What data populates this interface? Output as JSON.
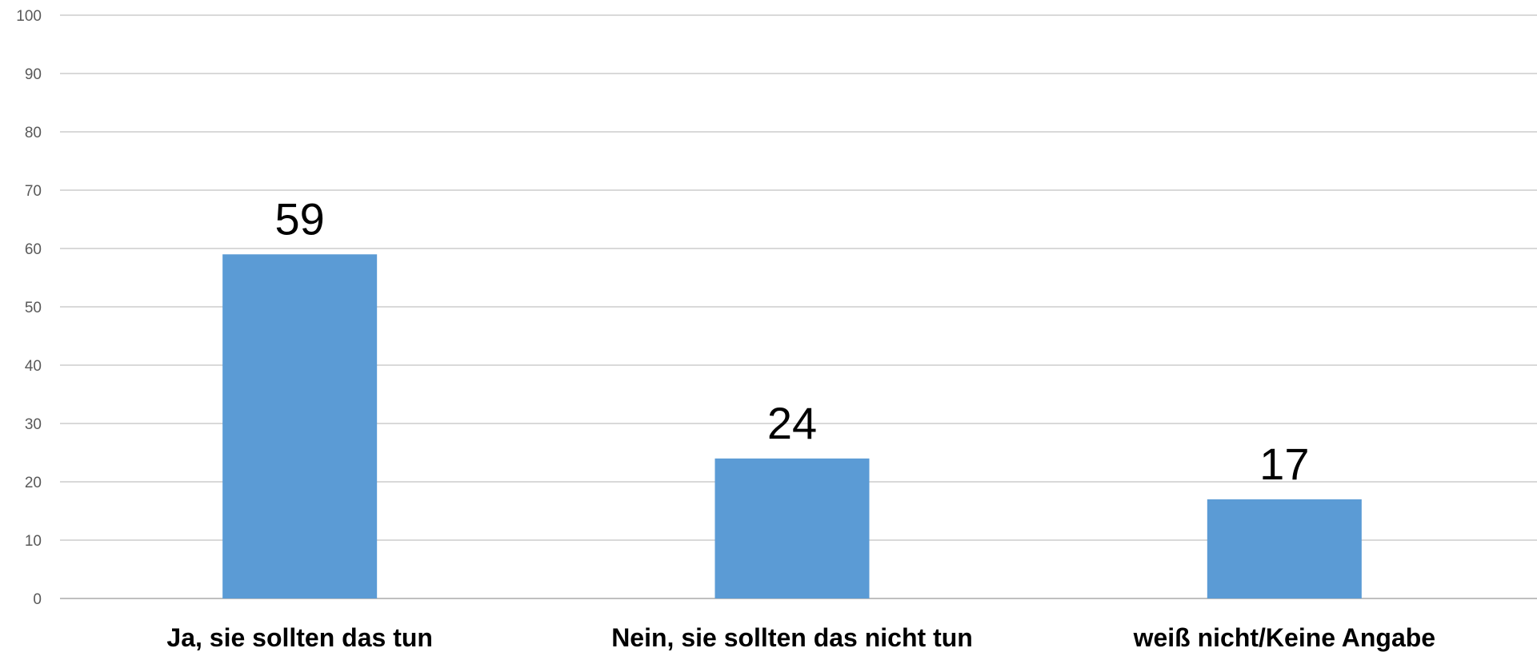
{
  "chart_data": {
    "type": "bar",
    "title": "",
    "xlabel": "",
    "ylabel": "",
    "categories": [
      "Ja, sie sollten das tun",
      "Nein, sie sollten das nicht tun",
      "weiß nicht/Keine Angabe"
    ],
    "values": [
      59,
      24,
      17
    ],
    "data_labels": [
      "59",
      "24",
      "17"
    ],
    "ylim": [
      0,
      100
    ],
    "yticks": [
      0,
      10,
      20,
      30,
      40,
      50,
      60,
      70,
      80,
      90,
      100
    ],
    "grid": true,
    "legend": "none",
    "colors": {
      "bar": "#5B9BD5",
      "grid": "#D9D9D9",
      "axis": "#BFBFBF",
      "tick_text": "#595959",
      "label_text": "#000000"
    }
  }
}
